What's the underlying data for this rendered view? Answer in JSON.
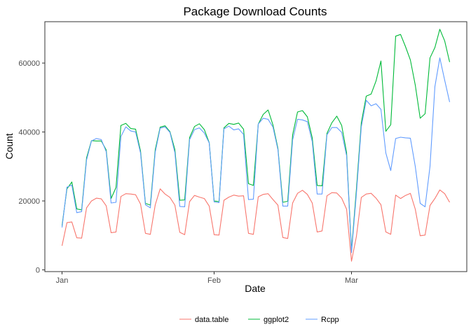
{
  "chart_data": {
    "type": "line",
    "title": "Package Download Counts",
    "xlabel": "Date",
    "ylabel": "Count",
    "x_ticks": [
      {
        "label": "Jan",
        "day": 0
      },
      {
        "label": "Feb",
        "day": 31
      },
      {
        "label": "Mar",
        "day": 59
      }
    ],
    "x_start": "Jan 1",
    "xlim_days": [
      -3.5,
      82.5
    ],
    "ylim": [
      -500,
      72000
    ],
    "y_ticks": [
      0,
      20000,
      40000,
      60000
    ],
    "y_tick_labels": [
      "0",
      "20000",
      "40000",
      "60000"
    ],
    "grid": false,
    "legend_position": "bottom",
    "series": [
      {
        "name": "data.table",
        "color": "#F8766D",
        "values": [
          7000,
          13700,
          13900,
          9300,
          9200,
          18000,
          20000,
          20800,
          20600,
          18600,
          10800,
          11000,
          21300,
          22100,
          22000,
          21800,
          19100,
          10600,
          10300,
          18900,
          23500,
          22000,
          21000,
          18800,
          10900,
          10200,
          19800,
          21600,
          21100,
          20700,
          18500,
          10200,
          10100,
          20200,
          21100,
          21700,
          21400,
          21500,
          10600,
          10300,
          21200,
          21900,
          22100,
          20400,
          18800,
          9400,
          9100,
          19400,
          22200,
          23100,
          21900,
          19400,
          11000,
          11300,
          21500,
          22400,
          22300,
          20800,
          17600,
          2500,
          9700,
          21000,
          22000,
          22200,
          20800,
          18900,
          11000,
          10300,
          21700,
          20700,
          21600,
          22200,
          17600,
          9900,
          10100,
          18700,
          20700,
          23200,
          22100,
          19600
        ]
      },
      {
        "name": "ggplot2",
        "color": "#00BA38",
        "values": [
          12800,
          23500,
          25500,
          17700,
          17400,
          32500,
          37500,
          37400,
          37400,
          34800,
          20700,
          23900,
          41900,
          42500,
          41000,
          40800,
          34500,
          19300,
          18800,
          34900,
          41400,
          41800,
          40100,
          34900,
          20200,
          20300,
          38400,
          41600,
          42400,
          40700,
          36900,
          20000,
          19800,
          41200,
          42500,
          42200,
          42600,
          40800,
          25000,
          24500,
          42300,
          45100,
          46400,
          42000,
          35300,
          19600,
          19900,
          39200,
          45800,
          46200,
          44400,
          38300,
          24500,
          24400,
          39600,
          42700,
          44600,
          41900,
          34000,
          5600,
          23400,
          42700,
          50400,
          51000,
          54800,
          60600,
          40200,
          42100,
          67800,
          68300,
          64800,
          60900,
          53600,
          44000,
          45300,
          61500,
          64500,
          69800,
          66400,
          60300
        ]
      },
      {
        "name": "Rcpp",
        "color": "#619CFF",
        "values": [
          12300,
          24000,
          24600,
          16600,
          16900,
          31900,
          37400,
          38100,
          37800,
          34300,
          19400,
          19600,
          38700,
          41500,
          40300,
          40000,
          33900,
          18900,
          18000,
          34200,
          41100,
          41500,
          39900,
          34000,
          18400,
          18300,
          37800,
          40700,
          41200,
          39700,
          36800,
          19700,
          19500,
          40900,
          41700,
          40600,
          40900,
          39300,
          20400,
          20500,
          42300,
          44000,
          43700,
          41400,
          34900,
          18500,
          18500,
          37700,
          43700,
          43500,
          43000,
          37200,
          22000,
          22000,
          39200,
          41300,
          41300,
          39900,
          33100,
          5000,
          22100,
          41500,
          49200,
          47600,
          48200,
          46600,
          33900,
          28800,
          38100,
          38500,
          38300,
          38200,
          30000,
          19300,
          18300,
          30000,
          53200,
          61500,
          55000,
          48700
        ]
      }
    ]
  }
}
